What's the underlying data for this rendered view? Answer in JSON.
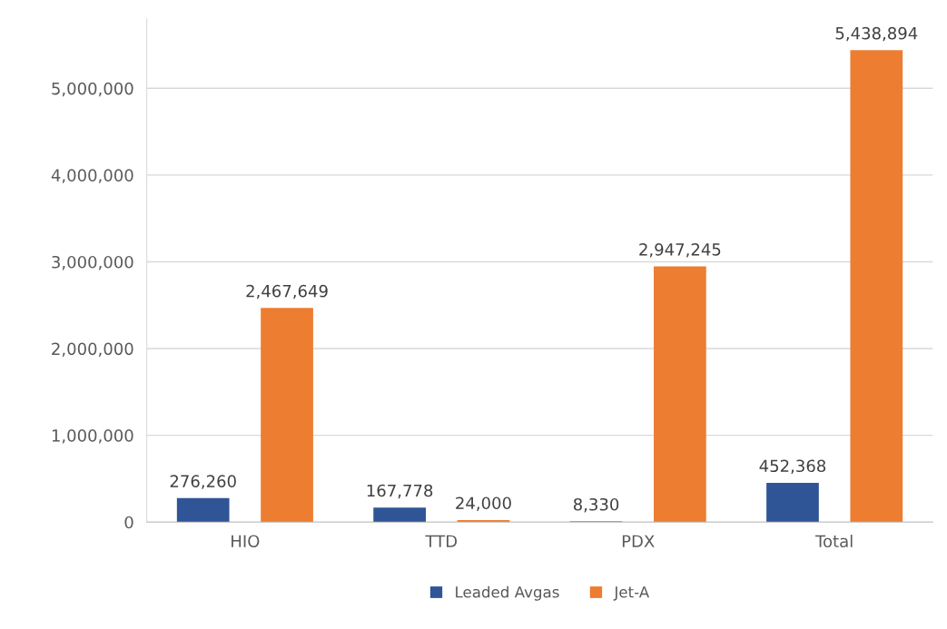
{
  "chart_data": {
    "type": "bar",
    "categories": [
      "HIO",
      "TTD",
      "PDX",
      "Total"
    ],
    "series": [
      {
        "name": "Leaded Avgas",
        "color": "#2f5597",
        "values": [
          276260,
          167778,
          8330,
          452368
        ],
        "value_labels": [
          "276,260",
          "167,778",
          "8,330",
          "452,368"
        ]
      },
      {
        "name": "Jet-A",
        "color": "#ed7d31",
        "values": [
          2467649,
          24000,
          2947245,
          5438894
        ],
        "value_labels": [
          "2,467,649",
          "24,000",
          "2,947,245",
          "5,438,894"
        ]
      }
    ],
    "ylim": [
      0,
      5800000
    ],
    "yticks": [
      {
        "value": 0,
        "label": "0"
      },
      {
        "value": 1000000,
        "label": "1,000,000"
      },
      {
        "value": 2000000,
        "label": "2,000,000"
      },
      {
        "value": 3000000,
        "label": "3,000,000"
      },
      {
        "value": 4000000,
        "label": "4,000,000"
      },
      {
        "value": 5000000,
        "label": "5,000,000"
      }
    ],
    "grid": "y",
    "legend": "bottom"
  }
}
